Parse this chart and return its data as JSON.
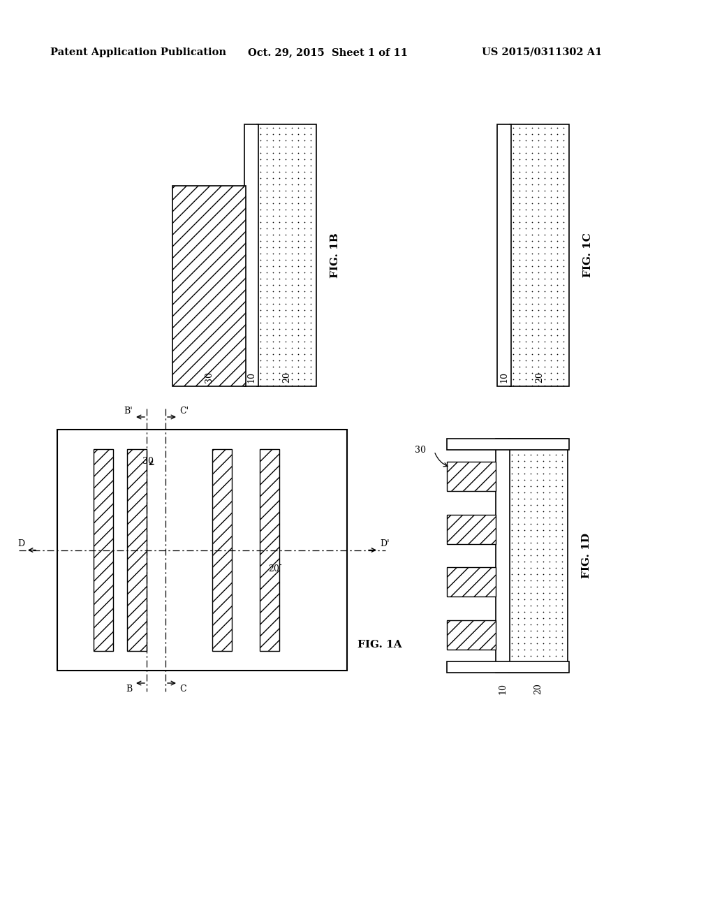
{
  "header_left": "Patent Application Publication",
  "header_center": "Oct. 29, 2015  Sheet 1 of 11",
  "header_right": "US 2015/0311302 A1",
  "fig1a_label": "FIG. 1A",
  "fig1b_label": "FIG. 1B",
  "fig1c_label": "FIG. 1C",
  "fig1d_label": "FIG. 1D",
  "bg_color": "#ffffff",
  "line_color": "#000000"
}
